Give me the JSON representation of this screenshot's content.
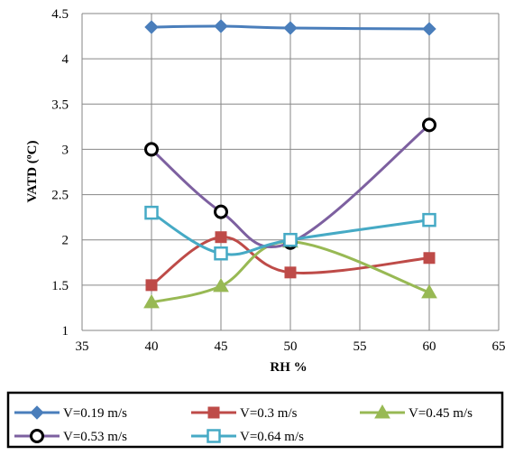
{
  "chart_data": {
    "type": "line",
    "xlabel": "RH %",
    "ylabel": "VATD (ºC)",
    "xlim": [
      35,
      65
    ],
    "ylim": [
      1,
      4.5
    ],
    "xticks": [
      35,
      40,
      45,
      50,
      55,
      60,
      65
    ],
    "yticks": [
      1,
      1.5,
      2,
      2.5,
      3,
      3.5,
      4,
      4.5
    ],
    "xtick_labels": [
      "35",
      "40",
      "45",
      "50",
      "55",
      "60",
      "65"
    ],
    "ytick_labels": [
      "1",
      "1.5",
      "2",
      "2.5",
      "3",
      "3.5",
      "4",
      "4.5"
    ],
    "grid": "both",
    "legend_position": "bottom",
    "x": [
      40,
      45,
      50,
      60
    ],
    "series": [
      {
        "name": "V=0.19 m/s",
        "values": [
          4.35,
          4.36,
          4.34,
          4.33
        ],
        "color": "#4a7ebb",
        "marker": "diamond"
      },
      {
        "name": "V=0.3 m/s",
        "values": [
          1.5,
          2.03,
          1.64,
          1.8
        ],
        "color": "#be4b48",
        "marker": "square"
      },
      {
        "name": "V=0.45 m/s",
        "values": [
          1.31,
          1.49,
          1.98,
          1.42
        ],
        "color": "#98b954",
        "marker": "triangle"
      },
      {
        "name": "V=0.53 m/s",
        "values": [
          3.0,
          2.31,
          1.97,
          3.27
        ],
        "color": "#7d60a0",
        "marker": "circle-open"
      },
      {
        "name": "V=0.64 m/s",
        "values": [
          2.3,
          1.85,
          2.0,
          2.22
        ],
        "color": "#46aac5",
        "marker": "square-open"
      }
    ]
  }
}
